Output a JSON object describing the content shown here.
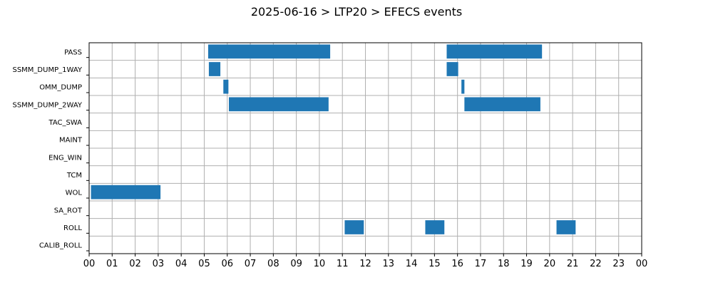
{
  "chart_data": {
    "type": "bar",
    "orientation": "horizontal-timeline",
    "title": "2025-06-16 > LTP20 > EFECS events",
    "xlabel": "",
    "ylabel": "",
    "xlim": [
      0,
      24
    ],
    "x_tick_labels": [
      "00",
      "01",
      "02",
      "03",
      "04",
      "05",
      "06",
      "07",
      "08",
      "09",
      "10",
      "11",
      "12",
      "13",
      "14",
      "15",
      "16",
      "17",
      "18",
      "19",
      "20",
      "21",
      "22",
      "23",
      "00"
    ],
    "grid": true,
    "bar_color": "#1f77b4",
    "categories": [
      "PASS",
      "SSMM_DUMP_1WAY",
      "OMM_DUMP",
      "SSMM_DUMP_2WAY",
      "TAC_SWA",
      "MAINT",
      "ENG_WIN",
      "TCM",
      "WOL",
      "SA_ROT",
      "ROLL",
      "CALIB_ROLL"
    ],
    "events": [
      {
        "category": "PASS",
        "start": 5.17,
        "end": 10.47
      },
      {
        "category": "PASS",
        "start": 15.53,
        "end": 19.67
      },
      {
        "category": "SSMM_DUMP_1WAY",
        "start": 5.2,
        "end": 5.7
      },
      {
        "category": "SSMM_DUMP_1WAY",
        "start": 15.53,
        "end": 16.03
      },
      {
        "category": "OMM_DUMP",
        "start": 5.83,
        "end": 6.05
      },
      {
        "category": "OMM_DUMP",
        "start": 16.17,
        "end": 16.3
      },
      {
        "category": "SSMM_DUMP_2WAY",
        "start": 6.07,
        "end": 10.4
      },
      {
        "category": "SSMM_DUMP_2WAY",
        "start": 16.3,
        "end": 19.6
      },
      {
        "category": "WOL",
        "start": 0.08,
        "end": 3.1
      },
      {
        "category": "ROLL",
        "start": 11.1,
        "end": 11.93
      },
      {
        "category": "ROLL",
        "start": 14.6,
        "end": 15.43
      },
      {
        "category": "ROLL",
        "start": 20.3,
        "end": 21.13
      }
    ]
  }
}
